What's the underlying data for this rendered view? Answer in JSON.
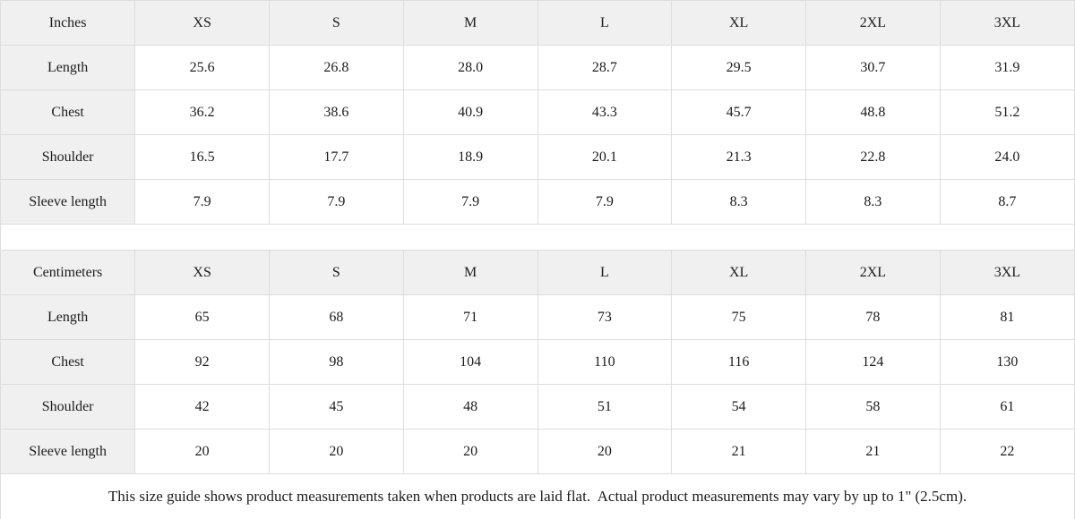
{
  "theme": {
    "page_background": "#ffffff",
    "header_cell_background": "#f0f0f0",
    "border_color": "#dddddd",
    "text_color": "#1c1c1c"
  },
  "tables": [
    {
      "unit_label": "Inches",
      "sizes": [
        "XS",
        "S",
        "M",
        "L",
        "XL",
        "2XL",
        "3XL"
      ],
      "rows": [
        {
          "label": "Length",
          "values": [
            "25.6",
            "26.8",
            "28.0",
            "28.7",
            "29.5",
            "30.7",
            "31.9"
          ]
        },
        {
          "label": "Chest",
          "values": [
            "36.2",
            "38.6",
            "40.9",
            "43.3",
            "45.7",
            "48.8",
            "51.2"
          ]
        },
        {
          "label": "Shoulder",
          "values": [
            "16.5",
            "17.7",
            "18.9",
            "20.1",
            "21.3",
            "22.8",
            "24.0"
          ]
        },
        {
          "label": "Sleeve length",
          "values": [
            "7.9",
            "7.9",
            "7.9",
            "7.9",
            "8.3",
            "8.3",
            "8.7"
          ]
        }
      ]
    },
    {
      "unit_label": "Centimeters",
      "sizes": [
        "XS",
        "S",
        "M",
        "L",
        "XL",
        "2XL",
        "3XL"
      ],
      "rows": [
        {
          "label": "Length",
          "values": [
            "65",
            "68",
            "71",
            "73",
            "75",
            "78",
            "81"
          ]
        },
        {
          "label": "Chest",
          "values": [
            "92",
            "98",
            "104",
            "110",
            "116",
            "124",
            "130"
          ]
        },
        {
          "label": "Shoulder",
          "values": [
            "42",
            "45",
            "48",
            "51",
            "54",
            "58",
            "61"
          ]
        },
        {
          "label": "Sleeve length",
          "values": [
            "20",
            "20",
            "20",
            "20",
            "21",
            "21",
            "22"
          ]
        }
      ]
    }
  ],
  "footer": {
    "note": "This size guide shows product measurements taken when products are laid flat.  Actual product measurements may vary by up to 1\" (2.5cm)."
  }
}
